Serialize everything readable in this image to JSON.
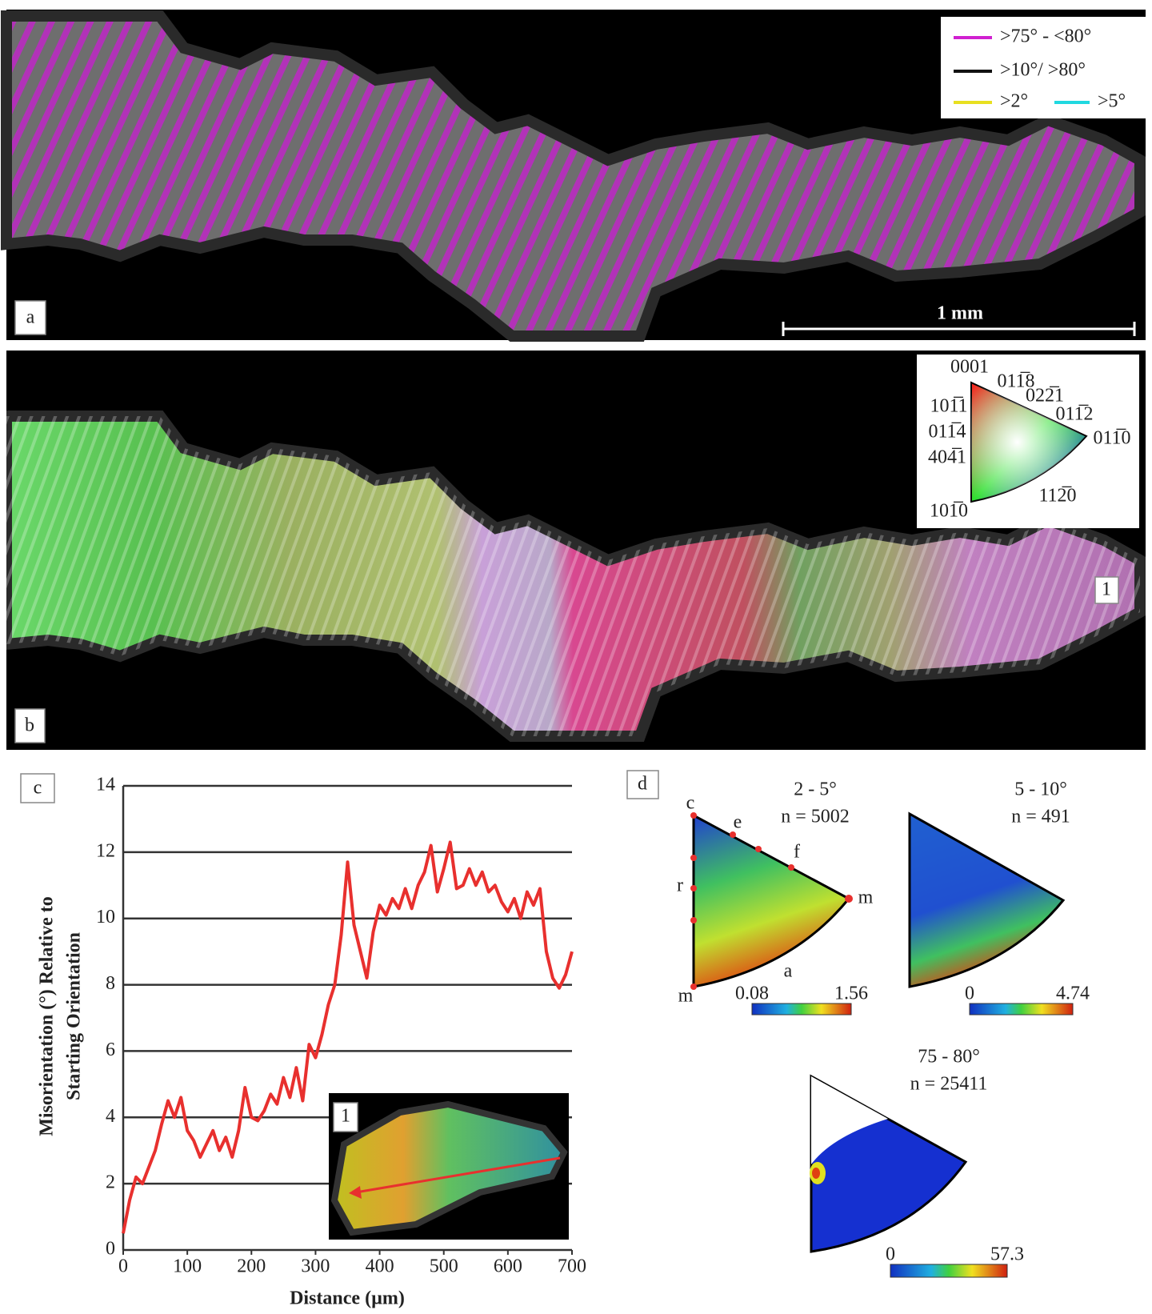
{
  "panel_a": {
    "label": "a",
    "legend": [
      ">75° - <80°",
      ">10°/ >80°",
      ">2°",
      ">5°"
    ],
    "legend_colors": [
      "#d020d0",
      "#111111",
      "#e8e020",
      "#20d8e0"
    ],
    "scale_bar": "1 mm"
  },
  "panel_b": {
    "label": "b",
    "region_label": "1",
    "key": [
      "0001",
      "011̅8",
      "022̅1",
      "011̅2",
      "011̅0",
      "101̅1",
      "011̅4",
      "404̅1",
      "101̅0",
      "112̅0"
    ]
  },
  "chart_data": {
    "type": "line",
    "label": "c",
    "inset_label": "1",
    "ylabel": [
      "Misorientation (°) Relative to",
      "Starting Orientation"
    ],
    "xlabel": "Distance (µm)",
    "x": [
      0,
      10,
      20,
      30,
      40,
      50,
      60,
      70,
      80,
      90,
      100,
      110,
      120,
      130,
      140,
      150,
      160,
      170,
      180,
      190,
      200,
      210,
      220,
      230,
      240,
      250,
      260,
      270,
      280,
      290,
      300,
      310,
      320,
      330,
      340,
      350,
      360,
      370,
      380,
      390,
      400,
      410,
      420,
      430,
      440,
      450,
      460,
      470,
      480,
      490,
      500,
      510,
      520,
      530,
      540,
      550,
      560,
      570,
      580,
      590,
      600,
      610,
      620,
      630,
      640,
      650,
      660,
      670,
      680,
      690,
      700
    ],
    "values": [
      0.5,
      1.5,
      2.2,
      2.0,
      2.5,
      3.0,
      3.8,
      4.5,
      4.0,
      4.6,
      3.6,
      3.3,
      2.8,
      3.2,
      3.6,
      3.0,
      3.4,
      2.8,
      3.6,
      4.9,
      4.0,
      3.9,
      4.2,
      4.7,
      4.4,
      5.2,
      4.6,
      5.5,
      4.5,
      6.2,
      5.8,
      6.5,
      7.4,
      8.0,
      9.5,
      11.7,
      9.8,
      9.0,
      8.2,
      9.6,
      10.4,
      10.1,
      10.6,
      10.3,
      10.9,
      10.3,
      11.0,
      11.4,
      12.2,
      10.8,
      11.5,
      12.3,
      10.9,
      11.0,
      11.5,
      11.0,
      11.4,
      10.8,
      11.0,
      10.5,
      10.2,
      10.6,
      10.0,
      10.8,
      10.4,
      10.9,
      9.0,
      8.2,
      7.9,
      8.3,
      9.0
    ],
    "color": "#e8302e",
    "xlim": [
      0,
      700
    ],
    "ylim": [
      0,
      14
    ],
    "xticks": [
      0,
      100,
      200,
      300,
      400,
      500,
      600,
      700
    ],
    "yticks": [
      0,
      2,
      4,
      6,
      8,
      10,
      12,
      14
    ],
    "grid": true
  },
  "panel_d": {
    "label": "d",
    "figures": [
      {
        "title": "2 - 5°",
        "n": "n = 5002",
        "scale": [
          "0.08",
          "1.56"
        ],
        "points": [
          "c",
          "e",
          "f",
          "m",
          "r",
          "a",
          "m"
        ]
      },
      {
        "title": "5 - 10°",
        "n": "n = 491",
        "scale": [
          "0",
          "4.74"
        ]
      },
      {
        "title": "75 - 80°",
        "n": "n = 25411",
        "scale": [
          "0",
          "57.3"
        ]
      }
    ]
  }
}
